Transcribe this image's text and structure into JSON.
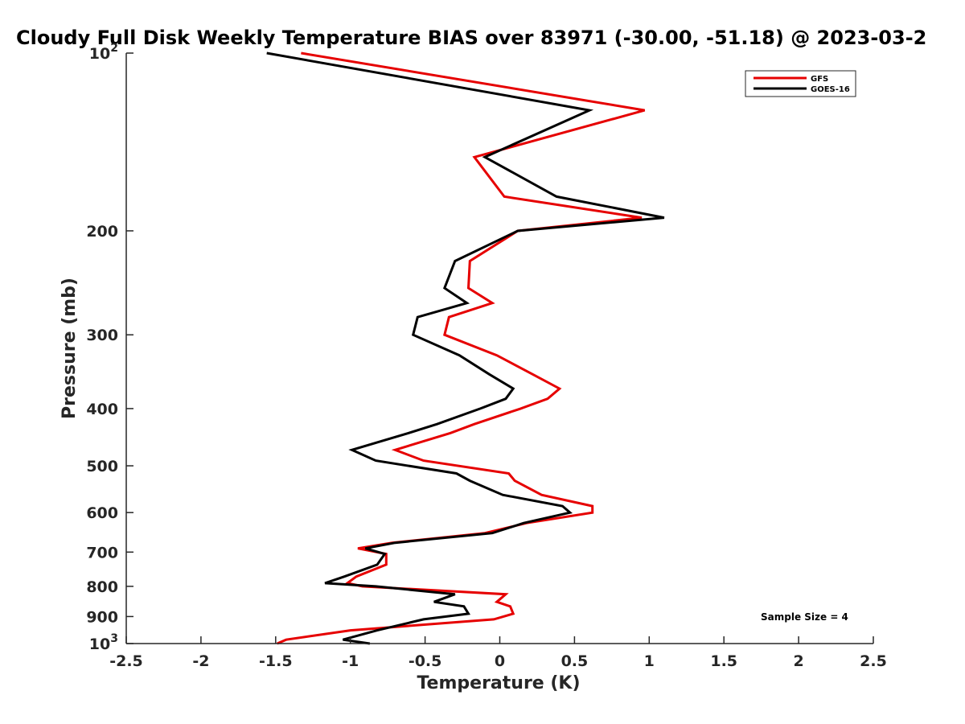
{
  "chart_data": {
    "type": "line",
    "title": "Cloudy Full Disk Weekly Temperature BIAS over 83971 (-30.00, -51.18) @ 2023-03-2",
    "xlabel": "Temperature (K)",
    "ylabel": "Pressure (mb)",
    "xlim": [
      -2.5,
      2.5
    ],
    "ylim": [
      100,
      1000
    ],
    "y_scale": "log",
    "y_reversed": true,
    "grid": false,
    "legend_position": "top-right",
    "x_ticks": [
      "-2.5",
      "-2",
      "-1.5",
      "-1",
      "-0.5",
      "0",
      "0.5",
      "1",
      "1.5",
      "2",
      "2.5"
    ],
    "x_tick_values": [
      -2.5,
      -2,
      -1.5,
      -1,
      -0.5,
      0,
      0.5,
      1,
      1.5,
      2,
      2.5
    ],
    "y_ticks": [
      {
        "value": 100,
        "base": "10",
        "exp": "2"
      },
      {
        "value": 200,
        "label": "200"
      },
      {
        "value": 300,
        "label": "300"
      },
      {
        "value": 400,
        "label": "400"
      },
      {
        "value": 500,
        "label": "500"
      },
      {
        "value": 600,
        "label": "600"
      },
      {
        "value": 700,
        "label": "700"
      },
      {
        "value": 800,
        "label": "800"
      },
      {
        "value": 900,
        "label": "900"
      },
      {
        "value": 1000,
        "base": "10",
        "exp": "3"
      }
    ],
    "series": [
      {
        "name": "GFS",
        "color": "#e60000",
        "points": [
          {
            "x": -1.33,
            "p": 100
          },
          {
            "x": 0.97,
            "p": 125
          },
          {
            "x": -0.17,
            "p": 150
          },
          {
            "x": 0.03,
            "p": 175
          },
          {
            "x": 0.95,
            "p": 190
          },
          {
            "x": 0.12,
            "p": 200
          },
          {
            "x": -0.2,
            "p": 225
          },
          {
            "x": -0.21,
            "p": 250
          },
          {
            "x": -0.05,
            "p": 265
          },
          {
            "x": -0.34,
            "p": 280
          },
          {
            "x": -0.37,
            "p": 300
          },
          {
            "x": -0.02,
            "p": 325
          },
          {
            "x": 0.22,
            "p": 350
          },
          {
            "x": 0.4,
            "p": 370
          },
          {
            "x": 0.32,
            "p": 385
          },
          {
            "x": 0.14,
            "p": 400
          },
          {
            "x": -0.17,
            "p": 425
          },
          {
            "x": -0.33,
            "p": 440
          },
          {
            "x": -0.7,
            "p": 470
          },
          {
            "x": -0.51,
            "p": 490
          },
          {
            "x": 0.06,
            "p": 515
          },
          {
            "x": 0.1,
            "p": 530
          },
          {
            "x": 0.28,
            "p": 560
          },
          {
            "x": 0.62,
            "p": 585
          },
          {
            "x": 0.62,
            "p": 600
          },
          {
            "x": 0.18,
            "p": 625
          },
          {
            "x": -0.1,
            "p": 650
          },
          {
            "x": -0.72,
            "p": 675
          },
          {
            "x": -0.95,
            "p": 690
          },
          {
            "x": -0.76,
            "p": 705
          },
          {
            "x": -0.76,
            "p": 735
          },
          {
            "x": -0.96,
            "p": 770
          },
          {
            "x": -1.02,
            "p": 790
          },
          {
            "x": -0.92,
            "p": 800
          },
          {
            "x": 0.04,
            "p": 825
          },
          {
            "x": -0.02,
            "p": 850
          },
          {
            "x": 0.07,
            "p": 865
          },
          {
            "x": 0.09,
            "p": 890
          },
          {
            "x": -0.04,
            "p": 910
          },
          {
            "x": -1.0,
            "p": 950
          },
          {
            "x": -1.43,
            "p": 985
          },
          {
            "x": -1.49,
            "p": 1000
          }
        ]
      },
      {
        "name": "GOES-16",
        "color": "#000000",
        "points": [
          {
            "x": -1.56,
            "p": 100
          },
          {
            "x": 0.6,
            "p": 125
          },
          {
            "x": -0.1,
            "p": 150
          },
          {
            "x": 0.38,
            "p": 175
          },
          {
            "x": 1.1,
            "p": 190
          },
          {
            "x": 0.12,
            "p": 200
          },
          {
            "x": -0.3,
            "p": 225
          },
          {
            "x": -0.37,
            "p": 250
          },
          {
            "x": -0.22,
            "p": 265
          },
          {
            "x": -0.55,
            "p": 280
          },
          {
            "x": -0.58,
            "p": 300
          },
          {
            "x": -0.27,
            "p": 325
          },
          {
            "x": -0.07,
            "p": 350
          },
          {
            "x": 0.09,
            "p": 370
          },
          {
            "x": 0.04,
            "p": 385
          },
          {
            "x": -0.13,
            "p": 400
          },
          {
            "x": -0.42,
            "p": 425
          },
          {
            "x": -0.61,
            "p": 440
          },
          {
            "x": -0.99,
            "p": 470
          },
          {
            "x": -0.83,
            "p": 490
          },
          {
            "x": -0.29,
            "p": 515
          },
          {
            "x": -0.2,
            "p": 530
          },
          {
            "x": 0.02,
            "p": 560
          },
          {
            "x": 0.42,
            "p": 585
          },
          {
            "x": 0.47,
            "p": 600
          },
          {
            "x": 0.16,
            "p": 625
          },
          {
            "x": -0.05,
            "p": 650
          },
          {
            "x": -0.7,
            "p": 675
          },
          {
            "x": -0.9,
            "p": 690
          },
          {
            "x": -0.77,
            "p": 705
          },
          {
            "x": -0.82,
            "p": 735
          },
          {
            "x": -1.04,
            "p": 770
          },
          {
            "x": -1.17,
            "p": 790
          },
          {
            "x": -0.83,
            "p": 800
          },
          {
            "x": -0.3,
            "p": 825
          },
          {
            "x": -0.44,
            "p": 850
          },
          {
            "x": -0.24,
            "p": 865
          },
          {
            "x": -0.21,
            "p": 890
          },
          {
            "x": -0.51,
            "p": 910
          },
          {
            "x": -0.82,
            "p": 950
          },
          {
            "x": -1.05,
            "p": 985
          },
          {
            "x": -0.87,
            "p": 1000
          }
        ]
      }
    ],
    "annotation": "Sample Size = 4"
  }
}
